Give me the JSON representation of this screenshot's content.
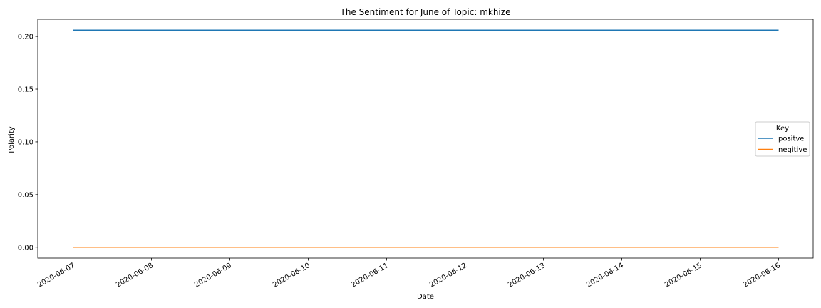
{
  "chart_data": {
    "type": "line",
    "title": "The Sentiment for June of Topic: mkhize",
    "xlabel": "Date",
    "ylabel": "Polarity",
    "x": [
      "2020-06-07",
      "2020-06-08",
      "2020-06-09",
      "2020-06-10",
      "2020-06-11",
      "2020-06-12",
      "2020-06-13",
      "2020-06-14",
      "2020-06-15",
      "2020-06-16"
    ],
    "series": [
      {
        "name": "positve",
        "color": "#1f77b4",
        "values": [
          0.206,
          0.206,
          0.206,
          0.206,
          0.206,
          0.206,
          0.206,
          0.206,
          0.206,
          0.206
        ]
      },
      {
        "name": "negitive",
        "color": "#ff7f0e",
        "values": [
          0.0,
          0.0,
          0.0,
          0.0,
          0.0,
          0.0,
          0.0,
          0.0,
          0.0,
          0.0
        ]
      }
    ],
    "yticks": [
      "0.00",
      "0.05",
      "0.10",
      "0.15",
      "0.20"
    ],
    "ylim": [
      -0.0103,
      0.2163
    ],
    "grid": false,
    "legend": {
      "title": "Key",
      "placement": "center-right"
    }
  }
}
